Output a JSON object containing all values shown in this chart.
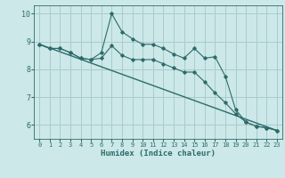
{
  "xlabel": "Humidex (Indice chaleur)",
  "x": [
    0,
    1,
    2,
    3,
    4,
    5,
    6,
    7,
    8,
    9,
    10,
    11,
    12,
    13,
    14,
    15,
    16,
    17,
    18,
    19,
    20,
    21,
    22,
    23
  ],
  "line1": [
    8.9,
    8.75,
    8.75,
    8.6,
    8.4,
    8.35,
    8.6,
    10.0,
    9.35,
    9.1,
    8.9,
    8.9,
    8.75,
    8.55,
    8.4,
    8.75,
    8.4,
    8.45,
    7.75,
    6.55,
    6.1,
    5.95,
    5.9,
    5.8
  ],
  "line2": [
    8.9,
    8.75,
    8.75,
    8.6,
    8.4,
    8.35,
    8.4,
    8.85,
    8.5,
    8.35,
    8.35,
    8.35,
    8.2,
    8.05,
    7.9,
    7.9,
    7.55,
    7.15,
    6.8,
    6.4,
    6.1,
    5.95,
    5.9,
    5.8
  ],
  "line3_x": [
    0,
    23
  ],
  "line3_y": [
    8.9,
    5.8
  ],
  "bg_color": "#cce8e8",
  "line_color": "#2e6b6b",
  "grid_color": "#aacccc",
  "ylim": [
    5.5,
    10.3
  ],
  "xlim": [
    -0.5,
    23.5
  ],
  "yticks": [
    6,
    7,
    8,
    9,
    10
  ],
  "xticks": [
    0,
    1,
    2,
    3,
    4,
    5,
    6,
    7,
    8,
    9,
    10,
    11,
    12,
    13,
    14,
    15,
    16,
    17,
    18,
    19,
    20,
    21,
    22,
    23
  ]
}
